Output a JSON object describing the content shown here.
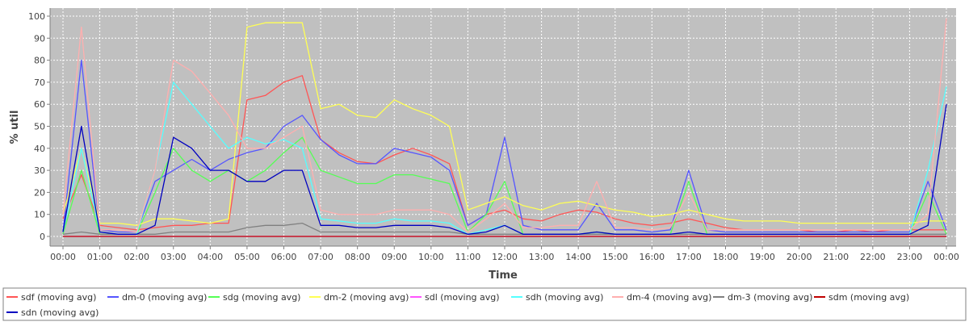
{
  "chart_data": {
    "type": "line",
    "xlabel": "Time",
    "ylabel": "% util",
    "ylim": [
      0,
      100
    ],
    "xlim": [
      "00:00",
      "24:00"
    ],
    "grid": true,
    "legend_position": "bottom",
    "x_ticks": [
      "00:00",
      "01:00",
      "02:00",
      "03:00",
      "04:00",
      "05:00",
      "06:00",
      "07:00",
      "08:00",
      "09:00",
      "10:00",
      "11:00",
      "12:00",
      "13:00",
      "14:00",
      "15:00",
      "16:00",
      "17:00",
      "18:00",
      "19:00",
      "20:00",
      "21:00",
      "22:00",
      "23:00",
      "00:00"
    ],
    "y_ticks": [
      0,
      10,
      20,
      30,
      40,
      50,
      60,
      70,
      80,
      90,
      100
    ],
    "plot_background": "#c0c0c0",
    "gridline_color": "#ffffff",
    "x": [
      "00:00",
      "00:30",
      "01:00",
      "01:30",
      "02:00",
      "02:30",
      "03:00",
      "03:30",
      "04:00",
      "04:30",
      "05:00",
      "05:30",
      "06:00",
      "06:30",
      "07:00",
      "07:30",
      "08:00",
      "08:30",
      "09:00",
      "09:30",
      "10:00",
      "10:30",
      "11:00",
      "11:30",
      "12:00",
      "12:30",
      "13:00",
      "13:30",
      "14:00",
      "14:30",
      "15:00",
      "15:30",
      "16:00",
      "16:30",
      "17:00",
      "17:30",
      "18:00",
      "18:30",
      "19:00",
      "19:30",
      "20:00",
      "20:30",
      "21:00",
      "21:30",
      "22:00",
      "22:30",
      "23:00",
      "23:30",
      "24:00"
    ],
    "series": [
      {
        "name": "sdf (moving avg)",
        "color": "#ff5555",
        "values": [
          8,
          28,
          5,
          4,
          3,
          4,
          5,
          5,
          6,
          6,
          62,
          64,
          70,
          73,
          44,
          38,
          34,
          33,
          37,
          40,
          37,
          33,
          5,
          10,
          12,
          8,
          7,
          10,
          12,
          11,
          8,
          6,
          5,
          6,
          8,
          6,
          4,
          3,
          3,
          3,
          3,
          2,
          2,
          3,
          2,
          3,
          3,
          3,
          3
        ]
      },
      {
        "name": "dm-0 (moving avg)",
        "color": "#5555ff",
        "values": [
          2,
          80,
          3,
          2,
          2,
          25,
          30,
          35,
          30,
          35,
          38,
          40,
          50,
          55,
          44,
          37,
          33,
          33,
          40,
          38,
          36,
          30,
          5,
          10,
          45,
          5,
          3,
          3,
          3,
          15,
          3,
          3,
          2,
          3,
          30,
          3,
          2,
          2,
          2,
          2,
          2,
          2,
          2,
          2,
          2,
          2,
          2,
          25,
          3
        ]
      },
      {
        "name": "sdg (moving avg)",
        "color": "#55ff55",
        "values": [
          1,
          30,
          1,
          1,
          1,
          20,
          40,
          30,
          25,
          30,
          25,
          30,
          38,
          45,
          30,
          27,
          24,
          24,
          28,
          28,
          26,
          24,
          2,
          10,
          25,
          1,
          1,
          1,
          1,
          2,
          1,
          1,
          1,
          1,
          25,
          1,
          1,
          1,
          1,
          1,
          1,
          1,
          1,
          1,
          1,
          1,
          1,
          20,
          1
        ]
      },
      {
        "name": "dm-2 (moving avg)",
        "color": "#ffff55",
        "values": [
          10,
          40,
          6,
          6,
          5,
          8,
          8,
          7,
          6,
          8,
          95,
          97,
          97,
          97,
          58,
          60,
          55,
          54,
          62,
          58,
          55,
          50,
          12,
          15,
          18,
          14,
          12,
          15,
          16,
          14,
          12,
          11,
          9,
          10,
          12,
          10,
          8,
          7,
          7,
          7,
          6,
          6,
          6,
          6,
          6,
          6,
          6,
          7,
          7
        ]
      },
      {
        "name": "sdl (moving avg)",
        "color": "#ff55ff",
        "values": [
          0,
          0,
          0,
          0,
          0,
          0,
          0,
          0,
          0,
          0,
          0,
          0,
          0,
          0,
          0,
          0,
          0,
          0,
          0,
          0,
          0,
          0,
          0,
          0,
          0,
          0,
          0,
          0,
          0,
          0,
          0,
          0,
          0,
          0,
          0,
          0,
          0,
          0,
          0,
          0,
          0,
          0,
          0,
          0,
          0,
          0,
          0,
          0,
          0
        ]
      },
      {
        "name": "sdh (moving avg)",
        "color": "#55ffff",
        "values": [
          2,
          40,
          2,
          1,
          1,
          30,
          70,
          60,
          50,
          40,
          45,
          42,
          44,
          40,
          8,
          7,
          6,
          6,
          8,
          7,
          7,
          6,
          1,
          3,
          5,
          1,
          1,
          1,
          1,
          1,
          1,
          1,
          1,
          1,
          1,
          1,
          1,
          1,
          1,
          1,
          1,
          1,
          1,
          1,
          1,
          1,
          1,
          30,
          68
        ]
      },
      {
        "name": "dm-4 (moving avg)",
        "color": "#ffafaf",
        "values": [
          10,
          95,
          3,
          3,
          2,
          30,
          80,
          75,
          65,
          55,
          40,
          40,
          45,
          50,
          12,
          10,
          10,
          10,
          12,
          12,
          12,
          10,
          2,
          8,
          15,
          4,
          4,
          5,
          5,
          25,
          4,
          4,
          3,
          4,
          20,
          3,
          3,
          3,
          3,
          3,
          3,
          3,
          3,
          3,
          3,
          3,
          3,
          10,
          99
        ]
      },
      {
        "name": "dm-3 (moving avg)",
        "color": "#808080",
        "values": [
          1,
          2,
          1,
          1,
          1,
          1,
          2,
          2,
          2,
          2,
          4,
          5,
          5,
          6,
          2,
          2,
          2,
          2,
          2,
          2,
          2,
          2,
          1,
          1,
          1,
          1,
          1,
          1,
          1,
          1,
          1,
          1,
          1,
          1,
          1,
          1,
          1,
          1,
          1,
          1,
          1,
          1,
          1,
          1,
          1,
          1,
          1,
          1,
          1
        ]
      },
      {
        "name": "sdm (moving avg)",
        "color": "#c00000",
        "values": [
          0,
          0,
          0,
          0,
          0,
          0,
          0,
          0,
          0,
          0,
          0,
          0,
          0,
          0,
          0,
          0,
          0,
          0,
          0,
          0,
          0,
          0,
          0,
          0,
          0,
          0,
          0,
          0,
          0,
          0,
          0,
          0,
          0,
          0,
          0,
          0,
          0,
          0,
          0,
          0,
          0,
          0,
          0,
          0,
          0,
          0,
          0,
          0,
          0
        ]
      },
      {
        "name": "sdn (moving avg)",
        "color": "#0000c0",
        "values": [
          2,
          50,
          2,
          1,
          1,
          5,
          45,
          40,
          30,
          30,
          25,
          25,
          30,
          30,
          5,
          5,
          4,
          4,
          5,
          5,
          5,
          4,
          1,
          2,
          5,
          1,
          1,
          1,
          1,
          2,
          1,
          1,
          1,
          1,
          2,
          1,
          1,
          1,
          1,
          1,
          1,
          1,
          1,
          1,
          1,
          1,
          1,
          5,
          60
        ]
      }
    ]
  }
}
